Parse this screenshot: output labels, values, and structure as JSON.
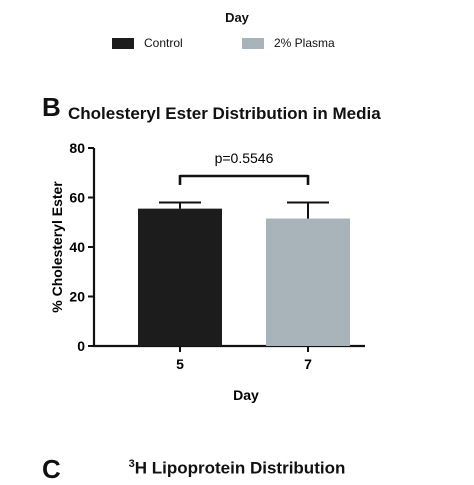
{
  "top_panel": {
    "xlabel": "Day",
    "legend": [
      {
        "label": "Control",
        "color": "#1c1c1c"
      },
      {
        "label": "2% Plasma",
        "color": "#a9b4ba"
      }
    ]
  },
  "panel_b": {
    "letter": "B"
  },
  "panel_c": {
    "letter": "C",
    "title_sup": "3",
    "title_rest": "H Lipoprotein Distribution"
  },
  "chart_data": {
    "type": "bar",
    "title": "Cholesteryl Ester Distribution in Media",
    "xlabel": "Day",
    "ylabel": "% Cholesteryl Ester",
    "ylim": [
      0,
      80
    ],
    "yticks": [
      0,
      20,
      40,
      60,
      80
    ],
    "categories": [
      "5",
      "7"
    ],
    "values": [
      55.5,
      51.5
    ],
    "errors": [
      2.5,
      6.5
    ],
    "bar_colors": [
      "#1c1c1c",
      "#a9b4ba"
    ],
    "annotation": "p=0.5546",
    "grid": false
  }
}
